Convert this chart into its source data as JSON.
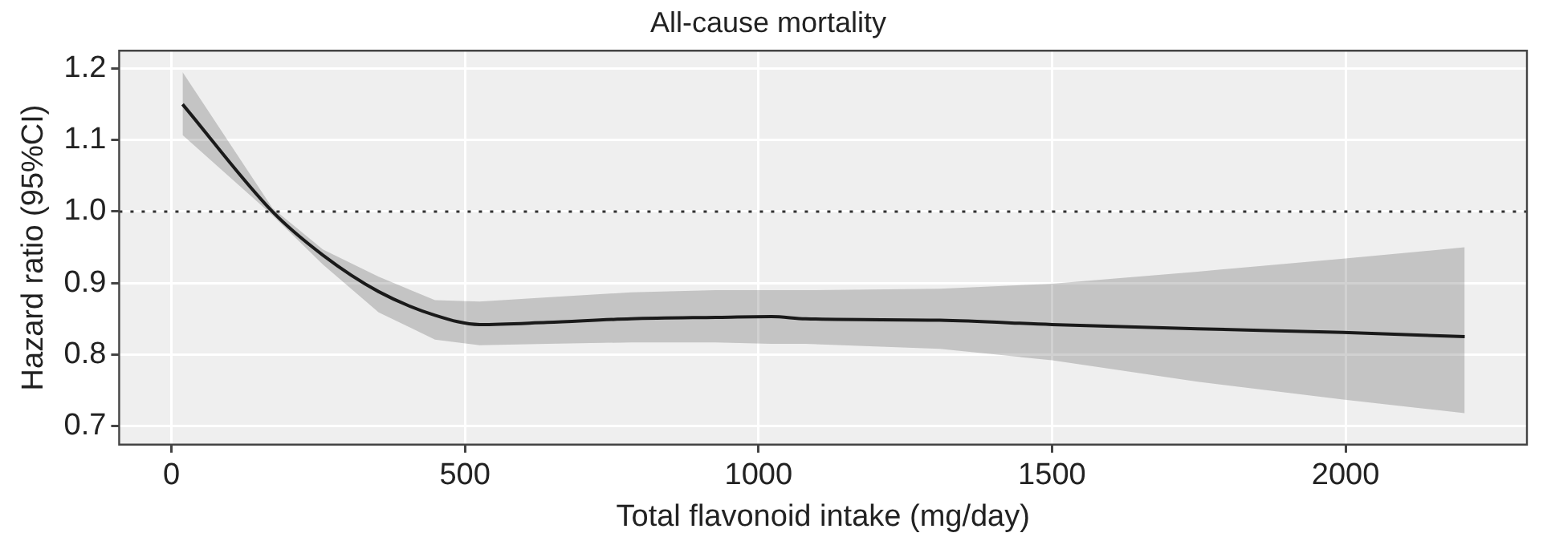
{
  "chart_data": {
    "type": "line",
    "title": "All-cause mortality",
    "xlabel": "Total flavonoid intake (mg/day)",
    "ylabel": "Hazard ratio (95%CI)",
    "xlim": [
      -89,
      2309
    ],
    "xticks": [
      0,
      500,
      1000,
      1500,
      2000
    ],
    "ylim": [
      0.674,
      1.225
    ],
    "yticks": [
      0.7,
      0.8,
      0.9,
      {
        "value": 1.0,
        "label": "1.0"
      },
      1.1,
      1.2
    ],
    "grid": true,
    "legend": false,
    "marker": "none",
    "line_style": "solid",
    "ref_lines": [
      {
        "axis": "y",
        "value": 1.0,
        "line_style": "dotted",
        "color": "#333333"
      }
    ],
    "series": [
      {
        "color": "#1a1a1a",
        "x": [
          19,
          172,
          258,
          353,
          449,
          525,
          640,
          783,
          927,
          1022,
          1080,
          1309,
          1500,
          1748,
          1996,
          2203
        ],
        "values": [
          1.15,
          1.0,
          0.939,
          0.888,
          0.855,
          0.842,
          0.845,
          0.85,
          0.852,
          0.853,
          0.85,
          0.848,
          0.842,
          0.836,
          0.831,
          0.825
        ],
        "upper": [
          1.195,
          1.005,
          0.947,
          0.909,
          0.876,
          0.874,
          0.88,
          0.887,
          0.89,
          0.89,
          0.89,
          0.892,
          0.899,
          0.916,
          0.934,
          0.95
        ],
        "lower": [
          1.107,
          0.995,
          0.926,
          0.859,
          0.821,
          0.813,
          0.815,
          0.817,
          0.817,
          0.815,
          0.815,
          0.808,
          0.792,
          0.762,
          0.737,
          0.718
        ]
      }
    ]
  }
}
